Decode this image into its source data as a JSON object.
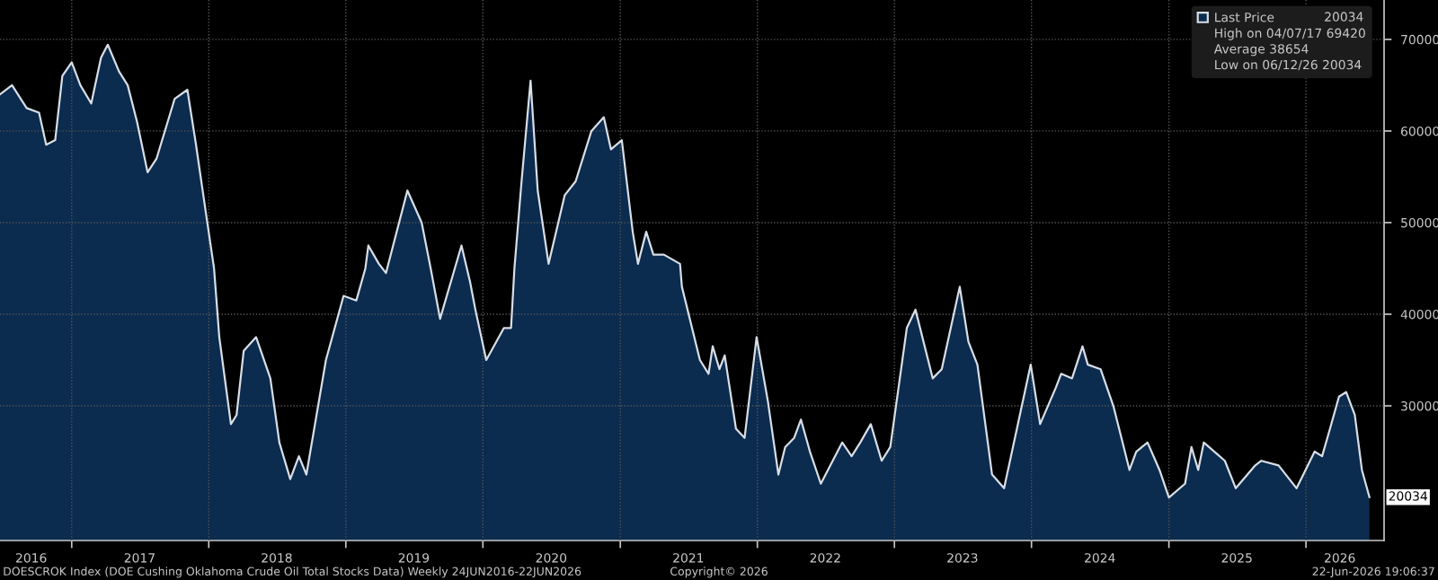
{
  "chart_data": {
    "type": "area",
    "x": [
      "2016-06-24",
      "2016-07-26",
      "2016-09-03",
      "2016-10-06",
      "2016-10-25",
      "2016-11-18",
      "2016-12-07",
      "2017-01-01",
      "2017-01-24",
      "2017-02-22",
      "2017-03-20",
      "2017-04-07",
      "2017-05-07",
      "2017-05-30",
      "2017-06-24",
      "2017-07-22",
      "2017-08-15",
      "2017-10-02",
      "2017-11-05",
      "2017-11-28",
      "2017-12-21",
      "2018-01-15",
      "2018-01-29",
      "2018-03-01",
      "2018-03-16",
      "2018-04-04",
      "2018-05-07",
      "2018-06-14",
      "2018-07-08",
      "2018-08-06",
      "2018-08-29",
      "2018-09-18",
      "2018-11-09",
      "2018-12-26",
      "2019-01-29",
      "2019-02-22",
      "2019-03-02",
      "2019-03-30",
      "2019-04-18",
      "2019-06-14",
      "2019-07-22",
      "2019-08-15",
      "2019-09-09",
      "2019-11-05",
      "2019-11-28",
      "2019-12-12",
      "2020-01-10",
      "2020-02-26",
      "2020-03-16",
      "2020-03-25",
      "2020-04-13",
      "2020-05-07",
      "2020-05-26",
      "2020-06-24",
      "2020-08-06",
      "2020-09-04",
      "2020-10-16",
      "2020-11-18",
      "2020-12-07",
      "2021-01-05",
      "2021-02-03",
      "2021-02-17",
      "2021-03-11",
      "2021-03-30",
      "2021-04-27",
      "2021-06-09",
      "2021-06-14",
      "2021-08-01",
      "2021-08-24",
      "2021-09-04",
      "2021-09-22",
      "2021-10-06",
      "2021-11-05",
      "2021-11-28",
      "2021-12-30",
      "2022-01-29",
      "2022-02-26",
      "2022-03-16",
      "2022-04-09",
      "2022-04-27",
      "2022-05-21",
      "2022-06-19",
      "2022-08-15",
      "2022-09-09",
      "2022-10-02",
      "2022-10-30",
      "2022-11-28",
      "2022-12-21",
      "2023-02-03",
      "2023-02-26",
      "2023-04-13",
      "2023-05-07",
      "2023-06-24",
      "2023-07-17",
      "2023-08-10",
      "2023-09-18",
      "2023-10-20",
      "2023-12-30",
      "2024-01-24",
      "2024-03-06",
      "2024-03-20",
      "2024-04-18",
      "2024-05-16",
      "2024-05-30",
      "2024-07-03",
      "2024-08-06",
      "2024-09-18",
      "2024-10-06",
      "2024-11-05",
      "2024-12-07",
      "2025-01-01",
      "2025-02-13",
      "2025-03-02",
      "2025-03-20",
      "2025-04-04",
      "2025-05-30",
      "2025-06-28",
      "2025-08-19",
      "2025-09-04",
      "2025-10-20",
      "2025-12-07",
      "2026-01-24",
      "2026-02-13",
      "2026-03-06",
      "2026-03-30",
      "2026-04-18",
      "2026-05-11",
      "2026-05-30",
      "2026-06-19"
    ],
    "series": [
      {
        "name": "Last Price",
        "color": "#0b2b4f",
        "values": [
          64000,
          65000,
          62500,
          62000,
          58500,
          59000,
          66000,
          67500,
          65000,
          63000,
          68000,
          69420,
          66500,
          65000,
          61000,
          55500,
          57000,
          63500,
          64500,
          58500,
          52000,
          45000,
          37500,
          28000,
          29000,
          36000,
          37500,
          33000,
          26000,
          22000,
          24500,
          22500,
          35000,
          42000,
          41500,
          45000,
          47500,
          45500,
          44500,
          53500,
          50000,
          45000,
          39500,
          47500,
          43500,
          40500,
          35000,
          38500,
          38500,
          45000,
          54500,
          65500,
          53500,
          45500,
          53000,
          54500,
          60000,
          61500,
          58000,
          59000,
          49000,
          45500,
          49000,
          46500,
          46500,
          45500,
          43000,
          35000,
          33500,
          36500,
          34000,
          35500,
          27500,
          26500,
          37500,
          30500,
          22500,
          25500,
          26500,
          28500,
          25000,
          21500,
          26000,
          24500,
          26000,
          28000,
          24000,
          25500,
          38500,
          40500,
          33000,
          34000,
          43000,
          37000,
          34500,
          22500,
          21000,
          34500,
          28000,
          32000,
          33500,
          33000,
          36500,
          34500,
          34000,
          30000,
          23000,
          25000,
          26000,
          23000,
          20000,
          21500,
          25500,
          23000,
          26000,
          24000,
          21000,
          23500,
          24000,
          23500,
          21000,
          25000,
          24500,
          27500,
          31000,
          31500,
          29000,
          23000,
          20034
        ]
      }
    ],
    "xlim": [
      "2016-06-24",
      "2026-07-28"
    ],
    "xticks": [
      {
        "value": "2016-09-15",
        "label": "2016"
      },
      {
        "value": "2017-01-01",
        "label": null
      },
      {
        "value": "2017-07-01",
        "label": "2017"
      },
      {
        "value": "2018-01-01",
        "label": null
      },
      {
        "value": "2018-07-01",
        "label": "2018"
      },
      {
        "value": "2019-01-01",
        "label": null
      },
      {
        "value": "2019-07-01",
        "label": "2019"
      },
      {
        "value": "2020-01-01",
        "label": null
      },
      {
        "value": "2020-07-01",
        "label": "2020"
      },
      {
        "value": "2021-01-01",
        "label": null
      },
      {
        "value": "2021-07-01",
        "label": "2021"
      },
      {
        "value": "2022-01-01",
        "label": null
      },
      {
        "value": "2022-07-01",
        "label": "2022"
      },
      {
        "value": "2023-01-01",
        "label": null
      },
      {
        "value": "2023-07-01",
        "label": "2023"
      },
      {
        "value": "2024-01-01",
        "label": null
      },
      {
        "value": "2024-07-01",
        "label": "2024"
      },
      {
        "value": "2025-01-01",
        "label": null
      },
      {
        "value": "2025-07-01",
        "label": "2025"
      },
      {
        "value": "2026-01-01",
        "label": null
      },
      {
        "value": "2026-04-01",
        "label": "2026"
      }
    ],
    "ylim": [
      15300,
      74300
    ],
    "yticks": [
      30000,
      40000,
      50000,
      60000,
      70000
    ],
    "grid": true,
    "legend": "top right",
    "annotations": [
      "20034",
      "High on 04/07/17 69420",
      "Average 38654",
      "Low on 06/12/26 20034",
      "DOESCROK Index (DOE Cushing Oklahoma Crude Oil Total Stocks Data) Weekly 24JUN2016-22JUN2026",
      "Copyright© 2026",
      "22-Jun-2026 19:06:37",
      {
        "text": "20034",
        "x": "2026-06-19",
        "y": 20034
      }
    ]
  }
}
